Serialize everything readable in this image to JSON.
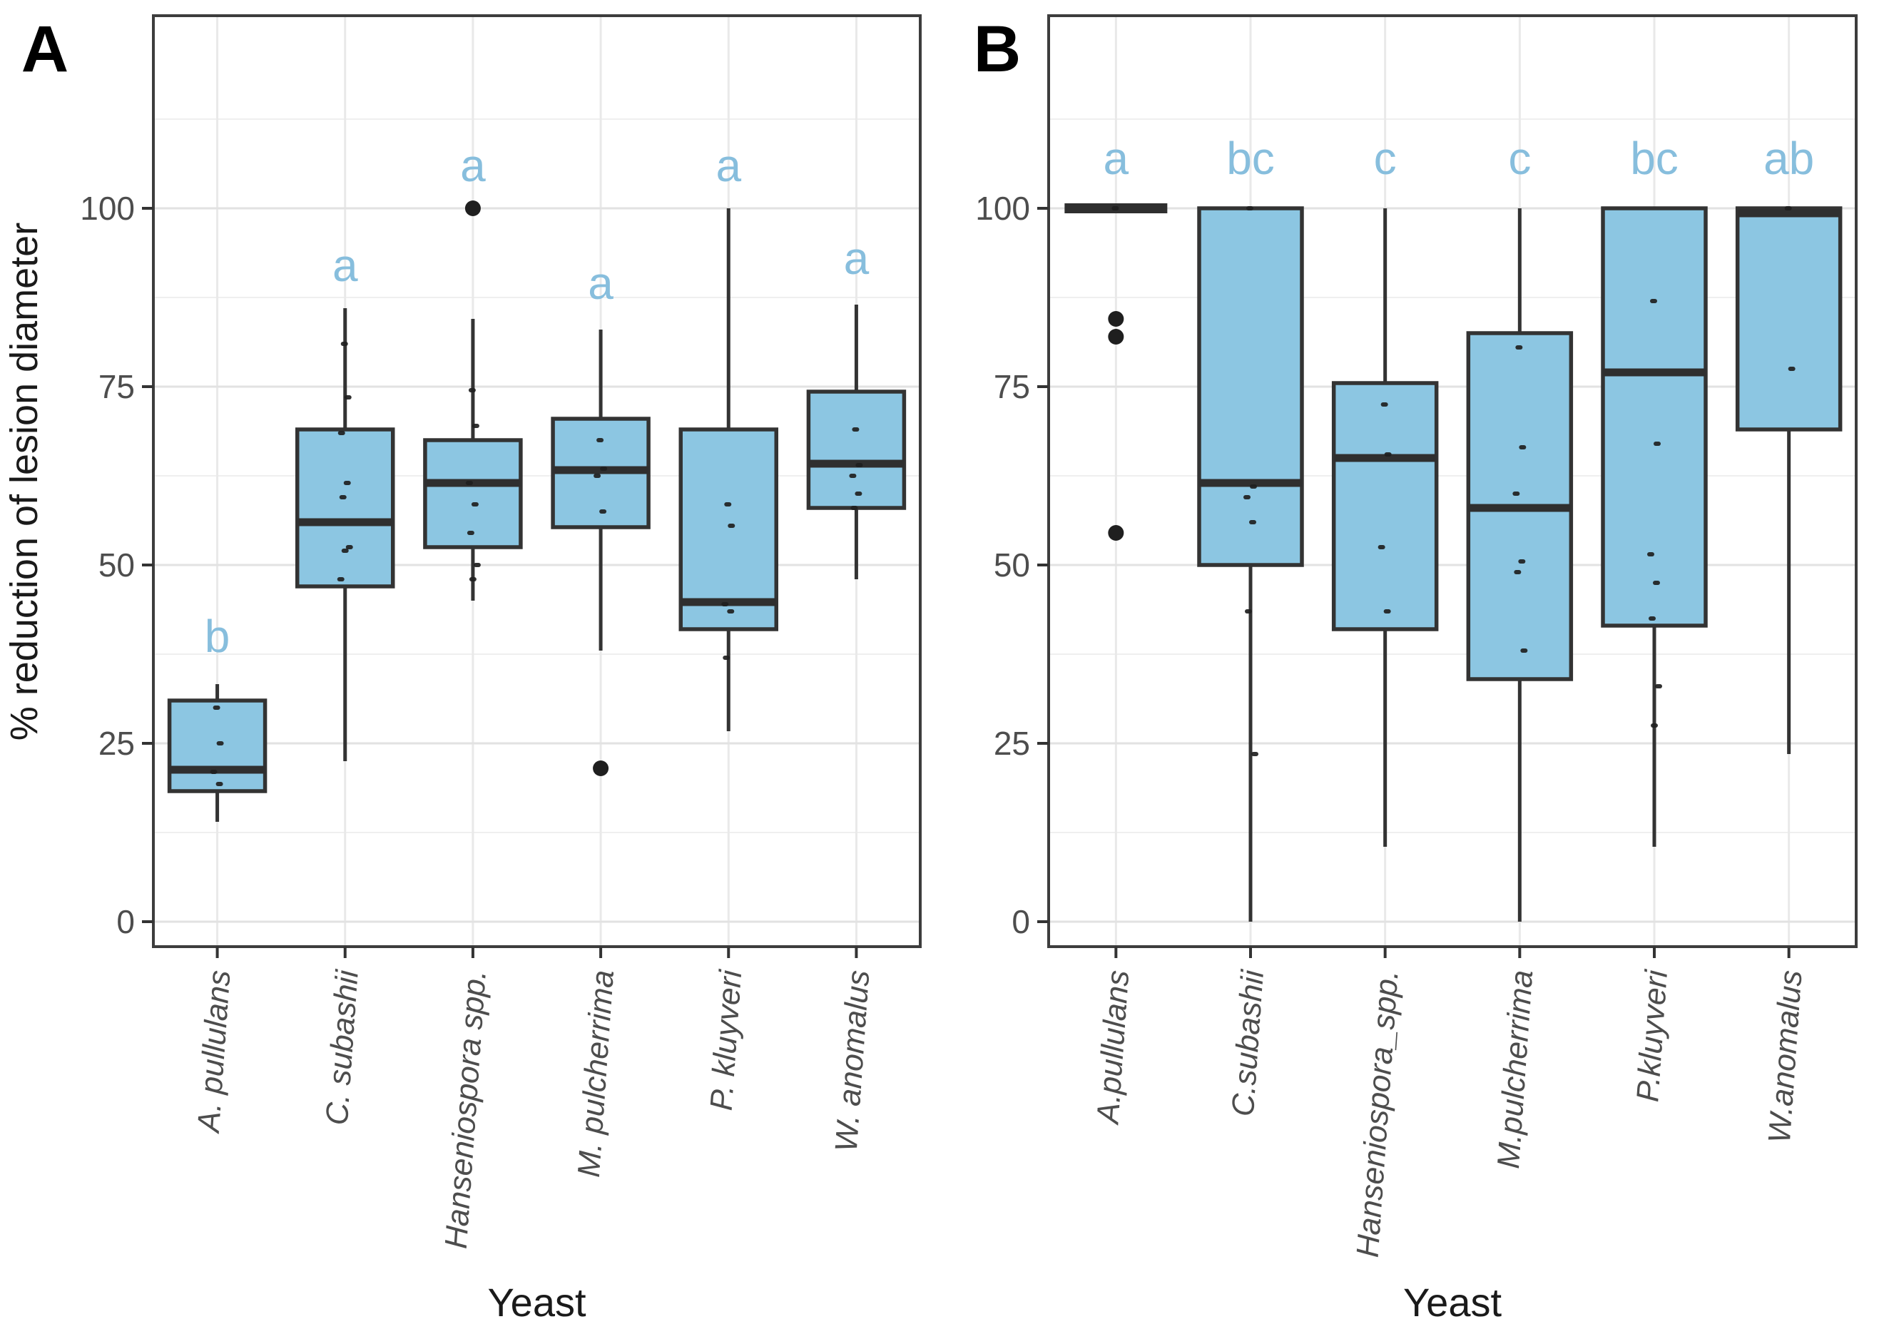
{
  "figure_title": "",
  "colors": {
    "box_fill": "#8cc6e2",
    "box_stroke": "#333333",
    "median": "#2f2f2f",
    "letter_blue": "#87bedd",
    "grid_major": "#e2e2e2",
    "grid_minor": "#efefef",
    "grid_vertical": "#e9e9e9",
    "panel_border": "#3d3d3d",
    "axis_text": "#4d4d4d",
    "axis_title": "#1a1a1a",
    "point_dark": "#1f1f1f"
  },
  "chart_data": [
    {
      "type": "boxplot",
      "panel_tag": "A",
      "xlabel": "Yeast",
      "ylabel": "% reduction of lesion diameter",
      "yticks": [
        0,
        25,
        50,
        75,
        100
      ],
      "ylim": [
        -3.5,
        127
      ],
      "grid": "on",
      "categories": [
        "A. pullulans",
        "C. subashii",
        "Hanseniospora spp.",
        "M. pulcherrima",
        "P. kluyveri",
        "W. anomalus"
      ],
      "significance_letters": [
        "b",
        "a",
        "a",
        "a",
        "a",
        "a"
      ],
      "letter_y": [
        40,
        92,
        106,
        89.5,
        106,
        93
      ],
      "boxes": [
        {
          "category": "A. pullulans",
          "whisker_low": 14,
          "q1": 18.3,
          "median": 21.3,
          "q3": 31,
          "whisker_high": 33.3,
          "outliers": [],
          "jitter_points": [
            30,
            25,
            21,
            19.3
          ]
        },
        {
          "category": "C. subashii",
          "whisker_low": 22.5,
          "q1": 47,
          "median": 56,
          "q3": 69,
          "whisker_high": 86,
          "outliers": [],
          "jitter_points": [
            81,
            73.5,
            68.5,
            61.5,
            59.5,
            52.5,
            52,
            48
          ]
        },
        {
          "category": "Hanseniospora spp.",
          "whisker_low": 45,
          "q1": 52.5,
          "median": 61.5,
          "q3": 67.5,
          "whisker_high": 84.5,
          "outliers": [
            100
          ],
          "jitter_points": [
            74.5,
            69.5,
            61.5,
            58.5,
            54.5,
            50,
            48
          ]
        },
        {
          "category": "M. pulcherrima",
          "whisker_low": 38,
          "q1": 55.3,
          "median": 63.3,
          "q3": 70.5,
          "whisker_high": 83,
          "outliers": [
            21.5
          ],
          "jitter_points": [
            67.5,
            63.5,
            62.5,
            57.5
          ]
        },
        {
          "category": "P. kluyveri",
          "whisker_low": 26.7,
          "q1": 41,
          "median": 44.8,
          "q3": 69,
          "whisker_high": 100,
          "outliers": [],
          "jitter_points": [
            58.5,
            55.5,
            44.5,
            43.5,
            37
          ]
        },
        {
          "category": "W. anomalus",
          "whisker_low": 48,
          "q1": 58,
          "median": 64.2,
          "q3": 74.3,
          "whisker_high": 86.5,
          "outliers": [],
          "jitter_points": [
            69,
            64,
            62.5,
            60,
            58
          ]
        }
      ]
    },
    {
      "type": "boxplot",
      "panel_tag": "B",
      "xlabel": "Yeast",
      "ylabel": "",
      "yticks": [
        0,
        25,
        50,
        75,
        100
      ],
      "ylim": [
        -3.5,
        127
      ],
      "grid": "on",
      "categories": [
        "A.pullulans",
        "C.subashii",
        "Hanseniospora_spp.",
        "M.pulcherrima",
        "P.kluyveri",
        "W.anomalus"
      ],
      "significance_letters": [
        "a",
        "bc",
        "c",
        "c",
        "bc",
        "ab"
      ],
      "letter_y": [
        107,
        107,
        107,
        107,
        107,
        107
      ],
      "boxes": [
        {
          "category": "A.pullulans",
          "whisker_low": 100,
          "q1": 100,
          "median": 100,
          "q3": 100,
          "whisker_high": 100,
          "outliers": [
            84.5,
            82,
            54.5
          ],
          "jitter_points": [
            100
          ]
        },
        {
          "category": "C.subashii",
          "whisker_low": 0,
          "q1": 50,
          "median": 61.5,
          "q3": 100,
          "whisker_high": 100,
          "outliers": [],
          "jitter_points": [
            100,
            61,
            59.5,
            56,
            43.5,
            23.5
          ]
        },
        {
          "category": "Hanseniospora_spp.",
          "whisker_low": 10.5,
          "q1": 41,
          "median": 65,
          "q3": 75.5,
          "whisker_high": 100,
          "outliers": [],
          "jitter_points": [
            72.5,
            65.5,
            52.5,
            43.5
          ]
        },
        {
          "category": "M.pulcherrima",
          "whisker_low": 0,
          "q1": 34,
          "median": 58,
          "q3": 82.5,
          "whisker_high": 100,
          "outliers": [],
          "jitter_points": [
            80.5,
            66.5,
            60,
            50.5,
            49,
            38
          ]
        },
        {
          "category": "P.kluyveri",
          "whisker_low": 10.5,
          "q1": 41.5,
          "median": 77,
          "q3": 100,
          "whisker_high": 100,
          "outliers": [],
          "jitter_points": [
            87,
            67,
            51.5,
            47.5,
            42.5,
            33,
            27.5
          ]
        },
        {
          "category": "W.anomalus",
          "whisker_low": 23.5,
          "q1": 69,
          "median": 99.3,
          "q3": 100,
          "whisker_high": 100,
          "outliers": [],
          "jitter_points": [
            100,
            77.5
          ]
        }
      ]
    }
  ]
}
